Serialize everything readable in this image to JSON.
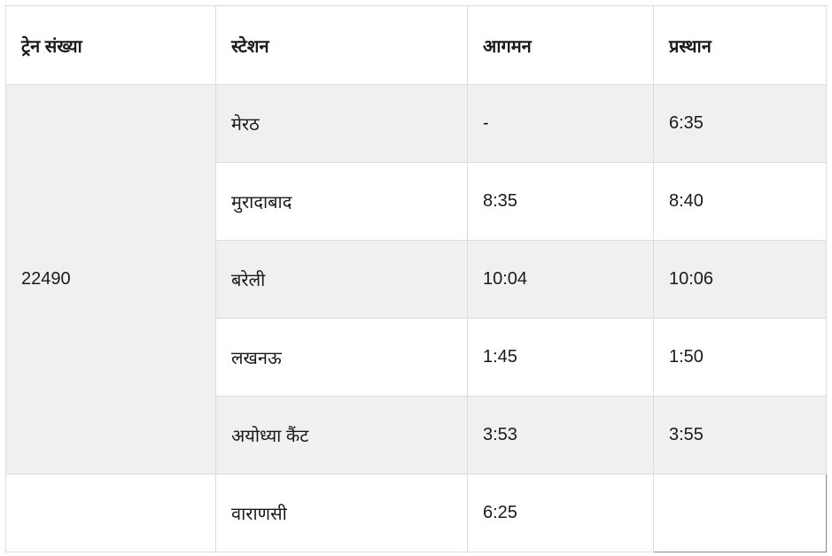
{
  "headers": [
    "ट्रेन संख्या",
    "स्टेशन",
    "आगमन",
    "प्रस्थान"
  ],
  "train_number": "22490",
  "rows": [
    {
      "station": "मेरठ",
      "arrival": "-",
      "departure": "6:35"
    },
    {
      "station": "मुरादाबाद",
      "arrival": "8:35",
      "departure": "8:40"
    },
    {
      "station": "बरेली",
      "arrival": "10:04",
      "departure": "10:06"
    },
    {
      "station": "लखनऊ",
      "arrival": "1:45",
      "departure": "1:50"
    },
    {
      "station": "अयोध्या कैंट",
      "arrival": "3:53",
      "departure": "3:55"
    },
    {
      "station": "वाराणसी",
      "arrival": "6:25",
      "departure": ""
    }
  ]
}
